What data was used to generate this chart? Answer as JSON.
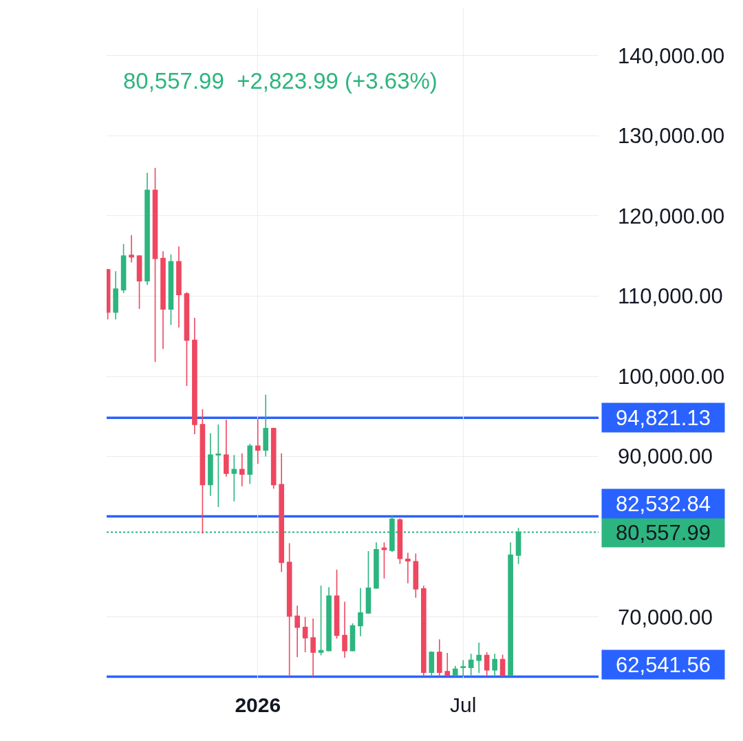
{
  "chart_data": {
    "type": "candlestick",
    "subtitle": "80,557.99  +2,823.99 (+3.63%)",
    "x": [
      "2025-08-25",
      "2025-09-01",
      "2025-09-08",
      "2025-09-15",
      "2025-09-22",
      "2025-09-29",
      "2025-10-06",
      "2025-10-13",
      "2025-10-20",
      "2025-10-27",
      "2025-11-03",
      "2025-11-10",
      "2025-11-17",
      "2025-11-24",
      "2025-12-01",
      "2025-12-08",
      "2025-12-15",
      "2025-12-22",
      "2025-12-29",
      "2026-01-05",
      "2026-01-12",
      "2026-01-19",
      "2026-01-26",
      "2026-02-02",
      "2026-02-09",
      "2026-02-16",
      "2026-02-23",
      "2026-03-02",
      "2026-03-09",
      "2026-03-16",
      "2026-03-23",
      "2026-03-30",
      "2026-04-06",
      "2026-04-13",
      "2026-04-20",
      "2026-04-27",
      "2026-05-04",
      "2026-05-11",
      "2026-05-18",
      "2026-05-25",
      "2026-06-01",
      "2026-06-08",
      "2026-06-15",
      "2026-06-22",
      "2026-06-29",
      "2026-07-06",
      "2026-07-13",
      "2026-07-20",
      "2026-07-27",
      "2026-08-03",
      "2026-08-10",
      "2026-08-17",
      "2026-08-24"
    ],
    "ohlc": [
      [
        113300,
        113400,
        107100,
        108000
      ],
      [
        108000,
        113100,
        107100,
        110900
      ],
      [
        110800,
        116500,
        110400,
        115000
      ],
      [
        115100,
        117600,
        114200,
        114900
      ],
      [
        115000,
        115100,
        108400,
        111900
      ],
      [
        111900,
        125400,
        111400,
        123200
      ],
      [
        123200,
        126000,
        101800,
        114700
      ],
      [
        114700,
        115600,
        103400,
        108400
      ],
      [
        108400,
        115200,
        106400,
        114300
      ],
      [
        114300,
        116200,
        106100,
        110200
      ],
      [
        110300,
        110500,
        98800,
        104500
      ],
      [
        104500,
        107300,
        92800,
        94000
      ],
      [
        94000,
        95900,
        80400,
        86500
      ],
      [
        86500,
        92900,
        85100,
        90200
      ],
      [
        90200,
        94000,
        83700,
        90300
      ],
      [
        90200,
        94600,
        87500,
        87900
      ],
      [
        87900,
        90200,
        84400,
        88400
      ],
      [
        88400,
        90400,
        86300,
        87800
      ],
      [
        87800,
        91600,
        86600,
        91300
      ],
      [
        91300,
        94700,
        89100,
        90800
      ],
      [
        90800,
        97700,
        90000,
        93500
      ],
      [
        93500,
        93600,
        86000,
        86500
      ],
      [
        86500,
        90400,
        75600,
        76800
      ],
      [
        76800,
        79200,
        62540,
        70100
      ],
      [
        70100,
        71400,
        65000,
        68700
      ],
      [
        68700,
        70000,
        65600,
        67400
      ],
      [
        67400,
        69800,
        62540,
        65600
      ],
      [
        65600,
        73900,
        65200,
        65800
      ],
      [
        65800,
        73700,
        65700,
        72600
      ],
      [
        72600,
        75900,
        67300,
        67700
      ],
      [
        67700,
        71900,
        64900,
        65800
      ],
      [
        65800,
        69200,
        65700,
        68900
      ],
      [
        68900,
        73600,
        67600,
        70500
      ],
      [
        70500,
        78200,
        70400,
        73600
      ],
      [
        73600,
        79300,
        73500,
        78400
      ],
      [
        78600,
        79300,
        74800,
        78400
      ],
      [
        78300,
        82600,
        78100,
        82200
      ],
      [
        82100,
        82300,
        76600,
        77300
      ],
      [
        77200,
        78000,
        74200,
        77000
      ],
      [
        76900,
        77900,
        72400,
        73500
      ],
      [
        73500,
        73900,
        62600,
        63100
      ],
      [
        63100,
        65700,
        62600,
        65600
      ],
      [
        65600,
        67200,
        62600,
        63100
      ],
      [
        63200,
        65500,
        62600,
        62700
      ],
      [
        62700,
        63900,
        62600,
        63500
      ],
      [
        63700,
        64600,
        62600,
        63800
      ],
      [
        63700,
        65400,
        62600,
        64600
      ],
      [
        64600,
        66800,
        63000,
        65200
      ],
      [
        65200,
        65600,
        62600,
        63400
      ],
      [
        63400,
        65400,
        62600,
        64700
      ],
      [
        64700,
        65300,
        62600,
        62700
      ],
      [
        62700,
        79300,
        62600,
        77700
      ],
      [
        77700,
        81100,
        76600,
        80557.99
      ]
    ],
    "colors": [
      "#ee4760",
      "#2db57f",
      "#2db57f",
      "#ee4760",
      "#ee4760",
      "#2db57f",
      "#ee4760",
      "#ee4760",
      "#2db57f",
      "#ee4760",
      "#ee4760",
      "#ee4760",
      "#ee4760",
      "#2db57f",
      "#2db57f",
      "#ee4760",
      "#2db57f",
      "#ee4760",
      "#2db57f",
      "#ee4760",
      "#2db57f",
      "#ee4760",
      "#ee4760",
      "#ee4760",
      "#ee4760",
      "#ee4760",
      "#ee4760",
      "#2db57f",
      "#2db57f",
      "#ee4760",
      "#ee4760",
      "#2db57f",
      "#2db57f",
      "#2db57f",
      "#2db57f",
      "#ee4760",
      "#2db57f",
      "#ee4760",
      "#ee4760",
      "#ee4760",
      "#ee4760",
      "#2db57f",
      "#ee4760",
      "#ee4760",
      "#2db57f",
      "#2db57f",
      "#2db57f",
      "#2db57f",
      "#ee4760",
      "#2db57f",
      "#ee4760",
      "#2db57f",
      "#2db57f"
    ],
    "xlim": [
      "2025-08-24",
      "2026-11-03"
    ],
    "xticks": [
      {
        "value": "2026-01-05",
        "label": "2026"
      },
      {
        "value": "2026-07-06",
        "label": "Jul"
      }
    ],
    "ylim": [
      62250,
      145900
    ],
    "yticks": [
      {
        "value": 70000,
        "label": "70,000.00"
      },
      {
        "value": 90000,
        "label": "90,000.00"
      },
      {
        "value": 100000,
        "label": "100,000.00"
      },
      {
        "value": 110000,
        "label": "110,000.00"
      },
      {
        "value": 120000,
        "label": "120,000.00"
      },
      {
        "value": 130000,
        "label": "130,000.00"
      },
      {
        "value": 140000,
        "label": "140,000.00"
      }
    ],
    "grid": true,
    "ref_lines": [
      {
        "axis": "y",
        "value": 94821.13,
        "label": "94,821.13",
        "color": "#2962ff",
        "line_style": "solid"
      },
      {
        "axis": "y",
        "value": 82532.84,
        "label": "82,532.84",
        "color": "#2962ff",
        "line_style": "solid"
      },
      {
        "axis": "y",
        "value": 80557.99,
        "label": "80,557.99",
        "color": "#2db57f",
        "line_style": "dotted"
      },
      {
        "axis": "y",
        "value": 62541.56,
        "label": "62,541.56",
        "color": "#2962ff",
        "line_style": "solid"
      }
    ]
  }
}
